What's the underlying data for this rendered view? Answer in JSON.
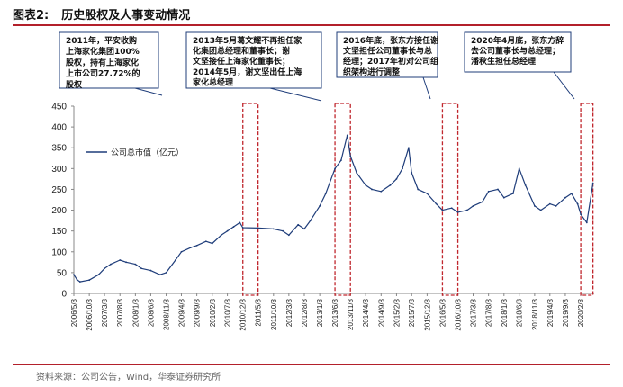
{
  "header": {
    "figure_number": "图表2:",
    "figure_title": "历史股权及人事变动情况"
  },
  "source": "资料来源：公司公告，Wind，华泰证券研究所",
  "colors": {
    "line": "#1f3d7a",
    "callout_border": "#1f3d7a",
    "highlight": "#c0262d",
    "rule": "#b3202b"
  },
  "chart_data": {
    "type": "line",
    "title": "",
    "xlabel": "",
    "ylabel": "",
    "ylim": [
      0,
      450
    ],
    "yticks": [
      0,
      50,
      100,
      150,
      200,
      250,
      300,
      350,
      400,
      450
    ],
    "xticks": [
      "2006/5/8",
      "2006/10/8",
      "2007/3/8",
      "2007/8/8",
      "2008/1/8",
      "2008/6/8",
      "2008/11/8",
      "2009/4/8",
      "2009/9/8",
      "2010/2/8",
      "2010/7/8",
      "2010/12/8",
      "2011/5/8",
      "2011/10/8",
      "2012/3/8",
      "2012/8/8",
      "2013/1/8",
      "2013/6/8",
      "2013/11/8",
      "2014/4/8",
      "2014/9/8",
      "2015/2/8",
      "2015/7/8",
      "2015/12/8",
      "2016/5/8",
      "2016/10/8",
      "2017/3/8",
      "2017/8/8",
      "2018/1/8",
      "2018/6/8",
      "2018/11/8",
      "2019/4/8",
      "2019/9/8",
      "2020/2/8"
    ],
    "grid": false,
    "legend": "top-left",
    "series": [
      {
        "name": "公司总市值（亿元）",
        "x": [
          "2006/5/8",
          "2006/6/8",
          "2006/7/8",
          "2006/10/8",
          "2007/1/8",
          "2007/3/8",
          "2007/5/8",
          "2007/8/8",
          "2007/10/8",
          "2008/1/8",
          "2008/3/8",
          "2008/6/8",
          "2008/9/8",
          "2008/11/8",
          "2009/2/8",
          "2009/4/8",
          "2009/7/8",
          "2009/9/8",
          "2009/12/8",
          "2010/2/8",
          "2010/5/8",
          "2010/7/8",
          "2010/9/8",
          "2010/11/8",
          "2010/12/8",
          "2011/5/8",
          "2011/10/8",
          "2012/1/8",
          "2012/3/8",
          "2012/6/8",
          "2012/8/8",
          "2012/10/8",
          "2013/1/8",
          "2013/3/8",
          "2013/6/8",
          "2013/8/8",
          "2013/10/8",
          "2013/11/8",
          "2014/1/8",
          "2014/4/8",
          "2014/6/8",
          "2014/9/8",
          "2014/12/8",
          "2015/2/8",
          "2015/4/8",
          "2015/6/8",
          "2015/7/8",
          "2015/9/8",
          "2015/12/8",
          "2016/3/8",
          "2016/5/8",
          "2016/8/8",
          "2016/10/8",
          "2017/1/8",
          "2017/3/8",
          "2017/6/8",
          "2017/8/8",
          "2017/11/8",
          "2018/1/8",
          "2018/4/8",
          "2018/6/8",
          "2018/8/8",
          "2018/11/8",
          "2019/1/8",
          "2019/4/8",
          "2019/6/8",
          "2019/9/8",
          "2019/11/8",
          "2020/1/8",
          "2020/2/8",
          "2020/4/8",
          "2020/6/8"
        ],
        "values": [
          45,
          33,
          28,
          32,
          45,
          60,
          70,
          80,
          75,
          70,
          60,
          55,
          45,
          50,
          80,
          100,
          110,
          115,
          125,
          120,
          140,
          150,
          160,
          170,
          158,
          157,
          155,
          150,
          140,
          165,
          155,
          175,
          210,
          240,
          300,
          320,
          380,
          330,
          290,
          260,
          250,
          245,
          260,
          275,
          300,
          350,
          290,
          250,
          240,
          215,
          200,
          205,
          195,
          200,
          210,
          220,
          245,
          250,
          230,
          240,
          300,
          260,
          210,
          200,
          215,
          210,
          230,
          240,
          215,
          190,
          170,
          265
        ]
      }
    ],
    "highlight_periods": [
      {
        "start": "2010/12/8",
        "end": "2011/5/8"
      },
      {
        "start": "2013/6/8",
        "end": "2013/11/8"
      },
      {
        "start": "2016/5/8",
        "end": "2016/10/8"
      },
      {
        "start": "2020/2/8",
        "end": "2020/6/8"
      }
    ]
  },
  "callouts": [
    {
      "lines": [
        "2011年，平安收购",
        "上海家化集团100%",
        "股权，持有上海家化",
        "上市公司27.72%的",
        "股权"
      ]
    },
    {
      "lines": [
        "2013年5月葛文耀不再担任家",
        "化集团总经理和董事长；谢",
        "文坚接任上海家化董事长；",
        "2014年5月，谢文坚出任上海",
        "家化总经理"
      ]
    },
    {
      "lines": [
        "2016年底，张东方接任谢",
        "文坚担任公司董事长与总",
        "经理；2017年初对公司组",
        "织架构进行调整"
      ]
    },
    {
      "lines": [
        "2020年4月底，张东方辞",
        "去公司董事长与总经理；",
        "潘秋生担任总经理"
      ]
    }
  ]
}
